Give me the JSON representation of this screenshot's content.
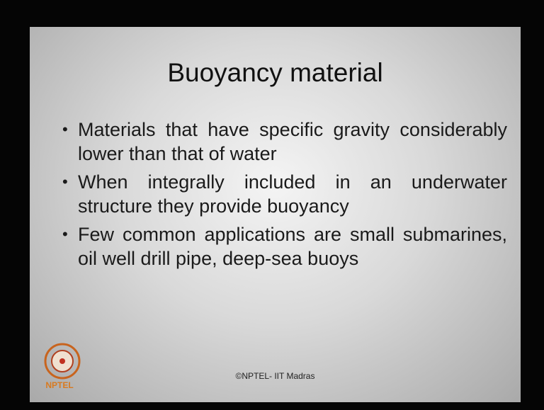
{
  "slide": {
    "title": "Buoyancy material",
    "bullets": [
      "Materials that have specific gravity considerably lower than that of water",
      "When integrally included in an underwater structure they provide buoyancy",
      "Few common applications are small submarines, oil well drill pipe, deep-sea buoys"
    ],
    "footer": "©NPTEL- IIT Madras",
    "logo": "NPTEL"
  }
}
